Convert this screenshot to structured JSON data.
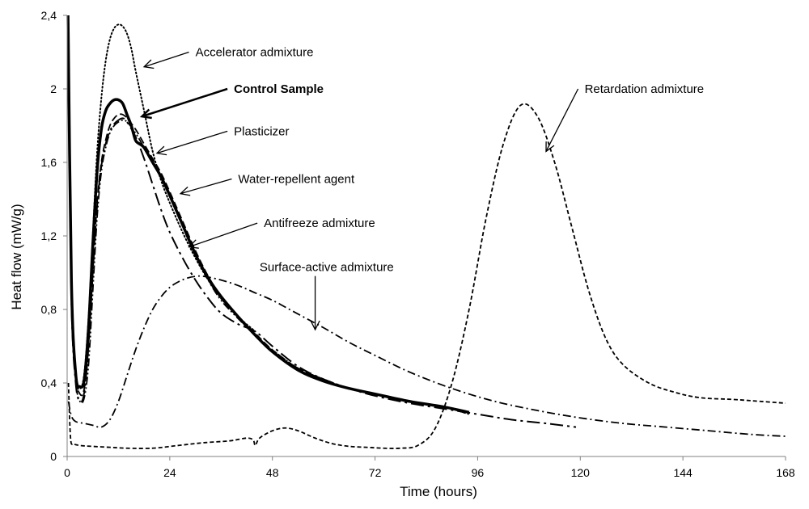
{
  "chart_data": {
    "type": "line",
    "title": "",
    "xlabel": "Time (hours)",
    "ylabel": "Heat flow (mW/g)",
    "xlim": [
      0,
      168
    ],
    "ylim": [
      0,
      2.4
    ],
    "xticks": [
      0,
      24,
      48,
      72,
      96,
      120,
      144,
      168
    ],
    "yticks": [
      0,
      0.4,
      0.8,
      1.2,
      1.6,
      2,
      2.4
    ],
    "xtick_labels": [
      "0",
      "24",
      "48",
      "72",
      "96",
      "120",
      "144",
      "168"
    ],
    "ytick_labels": [
      "0",
      "0,4",
      "0,8",
      "1,2",
      "1,6",
      "2",
      "2,4"
    ],
    "grid": false,
    "legend": "none",
    "series": [
      {
        "name": "Accelerator admixture",
        "style": "dotted",
        "width": 2,
        "x": [
          0.3,
          1,
          2,
          3,
          4,
          5,
          6,
          7,
          8,
          9,
          10,
          11,
          12,
          13,
          14,
          15,
          16,
          18,
          20,
          22,
          24,
          27,
          30,
          33,
          36,
          40,
          44
        ],
        "y": [
          2.35,
          1.0,
          0.45,
          0.37,
          0.45,
          0.75,
          1.2,
          1.65,
          1.95,
          2.15,
          2.27,
          2.33,
          2.35,
          2.34,
          2.3,
          2.22,
          2.1,
          1.88,
          1.66,
          1.5,
          1.38,
          1.22,
          1.08,
          0.96,
          0.86,
          0.76,
          0.68
        ]
      },
      {
        "name": "Control Sample",
        "style": "solid",
        "width": 3.5,
        "x": [
          0.2,
          1,
          2,
          3,
          4,
          5,
          6,
          7,
          8,
          9,
          10,
          11,
          12,
          13,
          14,
          15,
          16,
          17,
          18,
          20,
          22,
          24,
          27,
          30,
          33,
          36,
          40,
          44,
          48,
          54,
          60,
          66,
          72,
          80,
          88,
          94
        ],
        "y": [
          2.4,
          0.95,
          0.45,
          0.38,
          0.42,
          0.7,
          1.15,
          1.55,
          1.78,
          1.88,
          1.92,
          1.94,
          1.94,
          1.92,
          1.86,
          1.8,
          1.72,
          1.7,
          1.68,
          1.6,
          1.52,
          1.42,
          1.26,
          1.1,
          0.97,
          0.87,
          0.76,
          0.66,
          0.57,
          0.47,
          0.41,
          0.37,
          0.34,
          0.3,
          0.27,
          0.24
        ]
      },
      {
        "name": "Plasticizer",
        "style": "dash-dot-dot",
        "width": 1.8,
        "x": [
          0.3,
          1,
          2,
          3,
          4,
          5,
          6,
          7,
          8,
          9,
          10,
          11,
          12,
          13,
          14,
          16,
          18,
          20,
          22,
          24,
          27,
          30,
          33,
          36,
          40,
          44,
          48,
          54,
          60,
          66,
          72,
          80,
          88,
          94
        ],
        "y": [
          2.3,
          0.9,
          0.42,
          0.3,
          0.32,
          0.5,
          0.9,
          1.3,
          1.55,
          1.68,
          1.76,
          1.8,
          1.82,
          1.83,
          1.82,
          1.76,
          1.68,
          1.6,
          1.52,
          1.42,
          1.26,
          1.1,
          0.96,
          0.85,
          0.75,
          0.66,
          0.58,
          0.48,
          0.42,
          0.37,
          0.34,
          0.3,
          0.27,
          0.23
        ]
      },
      {
        "name": "Water-repellent agent",
        "style": "dashed",
        "width": 1.8,
        "x": [
          0.3,
          1,
          2,
          3,
          4,
          5,
          6,
          7,
          8,
          9,
          10,
          11,
          12,
          13,
          14,
          16,
          18,
          20,
          22,
          24,
          27,
          30,
          33,
          36,
          40,
          44,
          48,
          54,
          60,
          66,
          72,
          80,
          88,
          94
        ],
        "y": [
          2.3,
          0.9,
          0.45,
          0.34,
          0.37,
          0.6,
          1.0,
          1.38,
          1.6,
          1.72,
          1.8,
          1.84,
          1.86,
          1.86,
          1.84,
          1.78,
          1.7,
          1.62,
          1.54,
          1.44,
          1.28,
          1.12,
          0.98,
          0.87,
          0.76,
          0.67,
          0.58,
          0.48,
          0.42,
          0.37,
          0.34,
          0.3,
          0.27,
          0.23
        ]
      },
      {
        "name": "Antifreeze admixture",
        "style": "long-dash-dot",
        "width": 2,
        "x": [
          0.3,
          1,
          2,
          3,
          4,
          5,
          6,
          7,
          8,
          9,
          10,
          11,
          12,
          13,
          14,
          16,
          18,
          20,
          22,
          24,
          27,
          30,
          33,
          36,
          40,
          44,
          48,
          54,
          60,
          66,
          72,
          80,
          88,
          96,
          104,
          112,
          119
        ],
        "y": [
          2.2,
          0.85,
          0.4,
          0.3,
          0.35,
          0.6,
          1.0,
          1.36,
          1.58,
          1.7,
          1.77,
          1.81,
          1.83,
          1.84,
          1.82,
          1.74,
          1.62,
          1.48,
          1.34,
          1.22,
          1.08,
          0.96,
          0.86,
          0.78,
          0.72,
          0.68,
          0.6,
          0.49,
          0.42,
          0.37,
          0.33,
          0.29,
          0.26,
          0.23,
          0.2,
          0.18,
          0.16
        ]
      },
      {
        "name": "Surface-active admixture",
        "style": "dash-dot",
        "width": 1.8,
        "x": [
          0.3,
          1,
          2,
          4,
          6,
          8,
          10,
          12,
          14,
          16,
          18,
          20,
          22,
          24,
          26,
          28,
          30,
          32,
          36,
          40,
          44,
          48,
          52,
          56,
          60,
          66,
          72,
          80,
          90,
          100,
          110,
          120,
          130,
          140,
          150,
          160,
          168
        ],
        "y": [
          0.3,
          0.22,
          0.19,
          0.18,
          0.17,
          0.16,
          0.2,
          0.3,
          0.44,
          0.58,
          0.7,
          0.8,
          0.87,
          0.92,
          0.95,
          0.97,
          0.98,
          0.98,
          0.96,
          0.93,
          0.89,
          0.85,
          0.8,
          0.75,
          0.7,
          0.62,
          0.55,
          0.46,
          0.37,
          0.3,
          0.25,
          0.21,
          0.18,
          0.16,
          0.14,
          0.12,
          0.11
        ]
      },
      {
        "name": "Retardation admixture",
        "style": "short-dash",
        "width": 1.8,
        "x": [
          0.3,
          0.8,
          1.5,
          3,
          6,
          10,
          14,
          20,
          26,
          32,
          38,
          42,
          43.5,
          44,
          45,
          48,
          51,
          54,
          58,
          62,
          66,
          70,
          74,
          78,
          82,
          86,
          90,
          94,
          98,
          102,
          106,
          110,
          114,
          118,
          122,
          126,
          130,
          136,
          142,
          148,
          156,
          162,
          168
        ],
        "y": [
          0.4,
          0.1,
          0.07,
          0.06,
          0.055,
          0.05,
          0.045,
          0.045,
          0.06,
          0.075,
          0.085,
          0.1,
          0.09,
          0.06,
          0.1,
          0.14,
          0.155,
          0.14,
          0.1,
          0.07,
          0.055,
          0.05,
          0.045,
          0.045,
          0.06,
          0.15,
          0.4,
          0.8,
          1.3,
          1.7,
          1.91,
          1.85,
          1.6,
          1.25,
          0.9,
          0.64,
          0.5,
          0.4,
          0.35,
          0.32,
          0.31,
          0.3,
          0.29
        ]
      }
    ],
    "annotations": [
      {
        "text": "Accelerator admixture",
        "bold": false,
        "label_x": 30,
        "label_y": 2.2,
        "target_x": 18,
        "target_y": 2.12
      },
      {
        "text": "Control Sample",
        "bold": true,
        "label_x": 39,
        "label_y": 2.0,
        "target_x": 17.5,
        "target_y": 1.85
      },
      {
        "text": "Plasticizer",
        "bold": false,
        "label_x": 39,
        "label_y": 1.77,
        "target_x": 21,
        "target_y": 1.65
      },
      {
        "text": "Water-repellent agent",
        "bold": false,
        "label_x": 40,
        "label_y": 1.51,
        "target_x": 26.5,
        "target_y": 1.43
      },
      {
        "text": "Antifreeze admixture",
        "bold": false,
        "label_x": 46,
        "label_y": 1.27,
        "target_x": 28.5,
        "target_y": 1.14
      },
      {
        "text": "Surface-active admixture",
        "bold": false,
        "label_x": 45,
        "label_y": 1.03,
        "target_x": 58,
        "target_y": 0.69
      },
      {
        "text": "Retardation admixture",
        "bold": false,
        "label_x": 121,
        "label_y": 2.0,
        "target_x": 112,
        "target_y": 1.66
      }
    ]
  }
}
